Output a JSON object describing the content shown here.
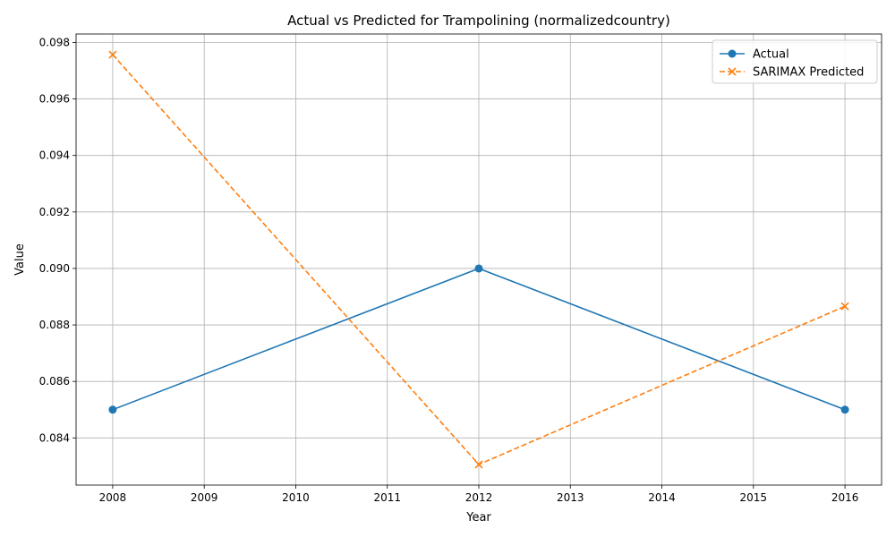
{
  "chart_data": {
    "type": "line",
    "title": "Actual vs Predicted for Trampolining (normalizedcountry)",
    "xlabel": "Year",
    "ylabel": "Value",
    "xlim": [
      2007.6,
      2016.4
    ],
    "ylim": [
      0.08233,
      0.0983
    ],
    "xticks": [
      2008,
      2009,
      2010,
      2011,
      2012,
      2013,
      2014,
      2015,
      2016
    ],
    "yticks": [
      0.084,
      0.086,
      0.088,
      0.09,
      0.092,
      0.094,
      0.096,
      0.098
    ],
    "grid": true,
    "legend_position": "top-right",
    "series": [
      {
        "name": "Actual",
        "x": [
          2008,
          2012,
          2016
        ],
        "y": [
          0.085,
          0.09,
          0.085
        ],
        "color": "#1f77b4",
        "linestyle": "solid",
        "marker": "circle"
      },
      {
        "name": "SARIMAX Predicted",
        "x": [
          2008,
          2012,
          2016
        ],
        "y": [
          0.09757,
          0.08306,
          0.08866
        ],
        "color": "#ff7f0e",
        "linestyle": "dashed",
        "marker": "x"
      }
    ]
  }
}
